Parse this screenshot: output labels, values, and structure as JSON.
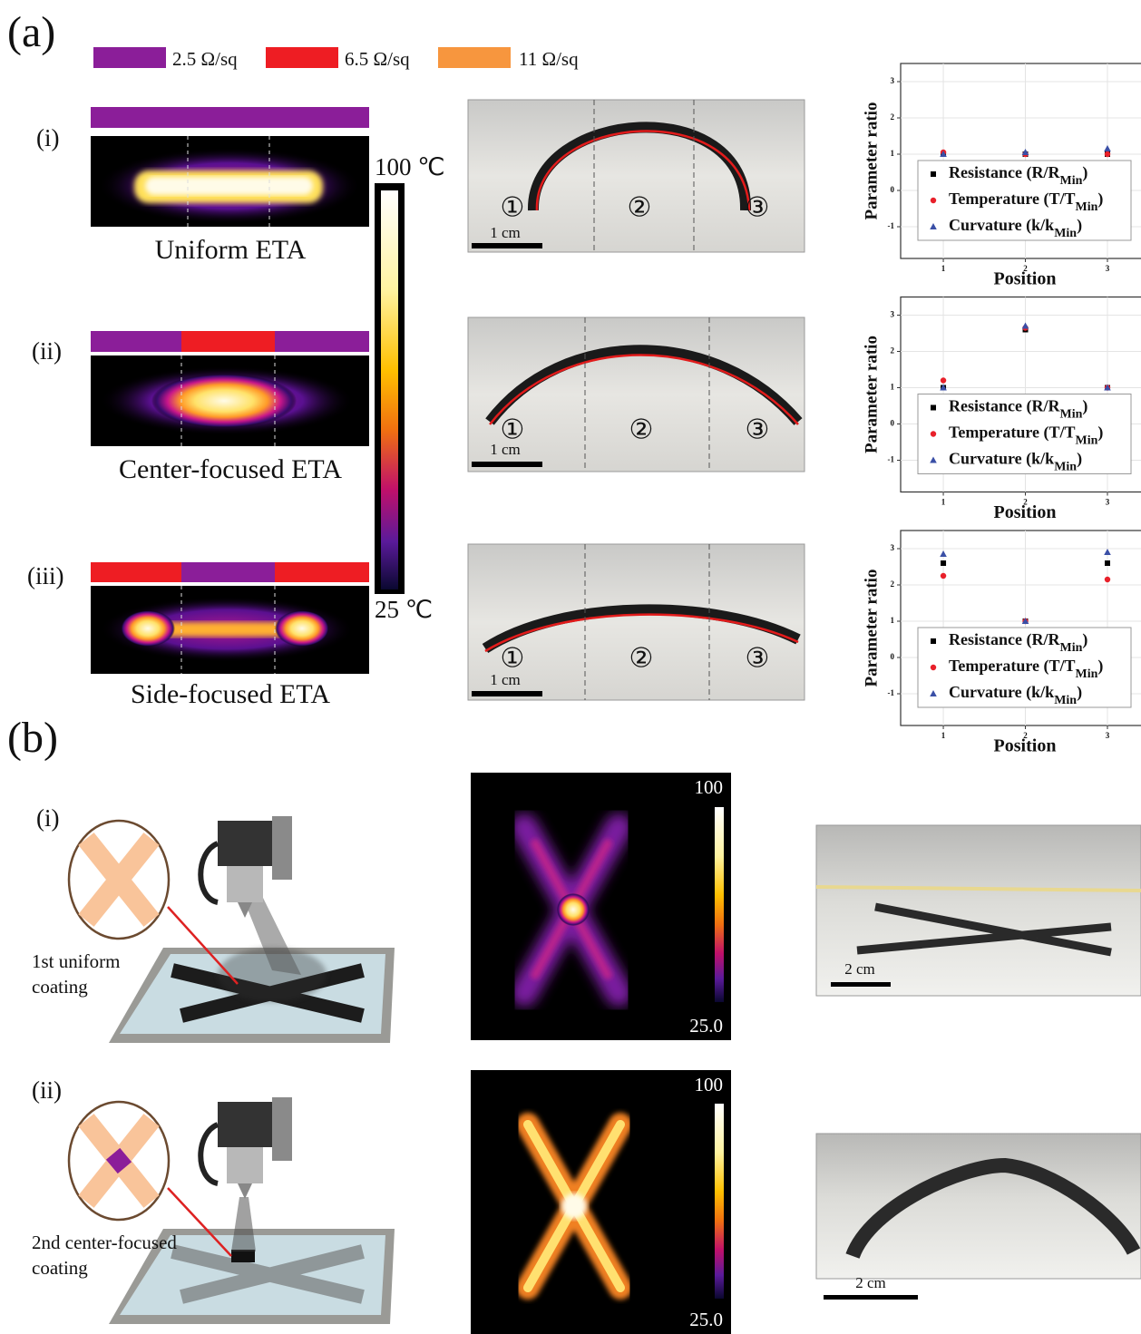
{
  "figure": {
    "panel_a": "(a)",
    "panel_b": "(b)",
    "legend": [
      {
        "label": "2.5 Ω/sq",
        "color": "#8b1e99"
      },
      {
        "label": "6.5 Ω/sq",
        "color": "#ee1d23"
      },
      {
        "label": "11 Ω/sq",
        "color": "#f7963e"
      }
    ],
    "rows_a": [
      {
        "label": "(i)",
        "caption": "Uniform ETA"
      },
      {
        "label": "(ii)",
        "caption": "Center-focused ETA"
      },
      {
        "label": "(iii)",
        "caption": "Side-focused ETA"
      }
    ],
    "colorbar": {
      "max": "100 ℃",
      "min": "25 ℃"
    },
    "photo_markers": [
      "①",
      "②",
      "③"
    ],
    "photo_scale": "1 cm",
    "rows_b": [
      {
        "label": "(i)",
        "note": [
          "1st uniform",
          "coating"
        ],
        "max": "100",
        "min": "25.0",
        "scale": "2 cm"
      },
      {
        "label": "(ii)",
        "note": [
          "2nd center-focused",
          "coating"
        ],
        "max": "100",
        "min": "25.0",
        "scale": "2 cm"
      }
    ]
  },
  "chart_data": [
    {
      "type": "scatter",
      "ylabel": "Parameter ratio",
      "xlabel": "Position",
      "x": [
        1,
        2,
        3
      ],
      "xlim": [
        0.48,
        3.42
      ],
      "ylim": [
        -1.875,
        3.5
      ],
      "xticks": [
        1,
        2,
        3
      ],
      "yticks": [
        -1,
        0,
        1,
        2,
        3
      ],
      "grid": true,
      "series": [
        {
          "name": "Resistance (R/RMin)",
          "color": "#000000",
          "marker": "square",
          "values": [
            1.0,
            1.0,
            1.0
          ]
        },
        {
          "name": "Temperature (T/TMin)",
          "color": "#e8202a",
          "marker": "circle",
          "values": [
            1.05,
            1.0,
            1.0
          ]
        },
        {
          "name": "Curvature (k/kMin)",
          "color": "#3a4fa6",
          "marker": "triangle",
          "values": [
            1.0,
            1.05,
            1.15
          ]
        }
      ]
    },
    {
      "type": "scatter",
      "ylabel": "Parameter ratio",
      "xlabel": "Position",
      "x": [
        1,
        2,
        3
      ],
      "xlim": [
        0.48,
        3.42
      ],
      "ylim": [
        -1.875,
        3.5
      ],
      "xticks": [
        1,
        2,
        3
      ],
      "yticks": [
        -1,
        0,
        1,
        2,
        3
      ],
      "grid": true,
      "series": [
        {
          "name": "Resistance (R/RMin)",
          "color": "#000000",
          "marker": "square",
          "values": [
            1.0,
            2.6,
            1.0
          ]
        },
        {
          "name": "Temperature (T/TMin)",
          "color": "#e8202a",
          "marker": "circle",
          "values": [
            1.2,
            2.65,
            1.0
          ]
        },
        {
          "name": "Curvature (k/kMin)",
          "color": "#3a4fa6",
          "marker": "triangle",
          "values": [
            1.0,
            2.7,
            1.0
          ]
        }
      ]
    },
    {
      "type": "scatter",
      "ylabel": "Parameter ratio",
      "xlabel": "Position",
      "x": [
        1,
        2,
        3
      ],
      "xlim": [
        0.48,
        3.42
      ],
      "ylim": [
        -1.875,
        3.5
      ],
      "xticks": [
        1,
        2,
        3
      ],
      "yticks": [
        -1,
        0,
        1,
        2,
        3
      ],
      "grid": true,
      "series": [
        {
          "name": "Resistance (R/RMin)",
          "color": "#000000",
          "marker": "square",
          "values": [
            2.6,
            1.0,
            2.6
          ]
        },
        {
          "name": "Temperature (T/TMin)",
          "color": "#e8202a",
          "marker": "circle",
          "values": [
            2.25,
            1.0,
            2.15
          ]
        },
        {
          "name": "Curvature (k/kMin)",
          "color": "#3a4fa6",
          "marker": "triangle",
          "values": [
            2.85,
            1.0,
            2.9
          ]
        }
      ]
    }
  ]
}
